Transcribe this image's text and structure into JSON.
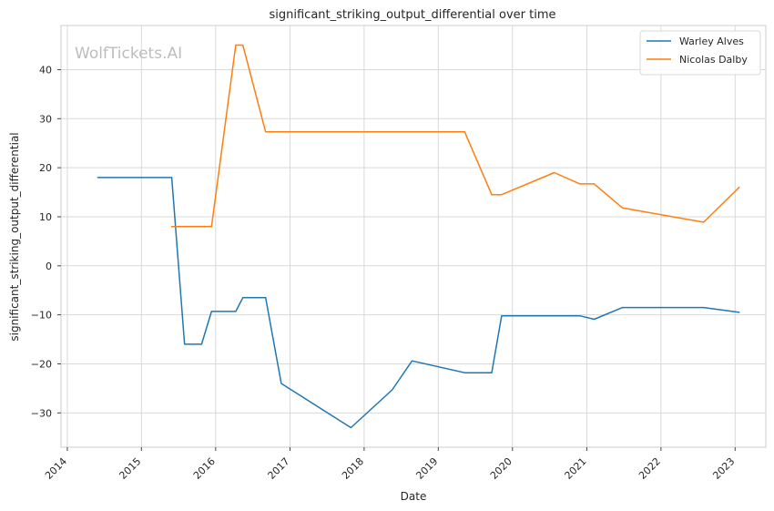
{
  "chart_data": {
    "type": "line",
    "title": "significant_striking_output_differential over time",
    "xlabel": "Date",
    "ylabel": "significant_striking_output_differential",
    "xlim": [
      "2013-12-01",
      "2023-06-01"
    ],
    "ylim": [
      -37,
      49
    ],
    "xticks": [
      "2014",
      "2015",
      "2016",
      "2017",
      "2018",
      "2019",
      "2020",
      "2021",
      "2022",
      "2023"
    ],
    "yticks": [
      -30,
      -20,
      -10,
      0,
      10,
      20,
      30,
      40
    ],
    "grid": true,
    "legend_position": "top-right",
    "watermark": "WolfTickets.AI",
    "series": [
      {
        "name": "Warley Alves",
        "color": "#1f77b4",
        "points": [
          {
            "date": "2014-05-31",
            "value": 18.0
          },
          {
            "date": "2015-05-30",
            "value": 18.0
          },
          {
            "date": "2015-08-01",
            "value": -16.0
          },
          {
            "date": "2015-10-24",
            "value": -16.0
          },
          {
            "date": "2015-12-12",
            "value": -9.3
          },
          {
            "date": "2016-04-09",
            "value": -9.3
          },
          {
            "date": "2016-05-14",
            "value": -6.5
          },
          {
            "date": "2016-09-03",
            "value": -6.5
          },
          {
            "date": "2016-11-19",
            "value": -24.0
          },
          {
            "date": "2017-10-28",
            "value": -33.0
          },
          {
            "date": "2018-05-19",
            "value": -25.3
          },
          {
            "date": "2018-08-25",
            "value": -19.4
          },
          {
            "date": "2019-05-11",
            "value": -21.8
          },
          {
            "date": "2019-09-21",
            "value": -21.8
          },
          {
            "date": "2019-11-09",
            "value": -10.2
          },
          {
            "date": "2020-11-28",
            "value": -10.2
          },
          {
            "date": "2021-02-06",
            "value": -10.9
          },
          {
            "date": "2021-06-26",
            "value": -8.5
          },
          {
            "date": "2022-07-30",
            "value": -8.5
          },
          {
            "date": "2023-01-21",
            "value": -9.5
          }
        ]
      },
      {
        "name": "Nicolas Dalby",
        "color": "#ff7f0e",
        "points": [
          {
            "date": "2015-05-30",
            "value": 8.0
          },
          {
            "date": "2015-12-12",
            "value": 8.0
          },
          {
            "date": "2016-04-09",
            "value": 45.0
          },
          {
            "date": "2016-05-14",
            "value": 45.0
          },
          {
            "date": "2016-09-03",
            "value": 27.3
          },
          {
            "date": "2019-05-11",
            "value": 27.3
          },
          {
            "date": "2019-09-21",
            "value": 14.5
          },
          {
            "date": "2019-11-09",
            "value": 14.5
          },
          {
            "date": "2020-07-25",
            "value": 19.0
          },
          {
            "date": "2020-11-28",
            "value": 16.7
          },
          {
            "date": "2021-02-06",
            "value": 16.7
          },
          {
            "date": "2021-06-26",
            "value": 11.8
          },
          {
            "date": "2022-07-30",
            "value": 8.9
          },
          {
            "date": "2023-01-21",
            "value": 16.0
          }
        ]
      }
    ]
  }
}
